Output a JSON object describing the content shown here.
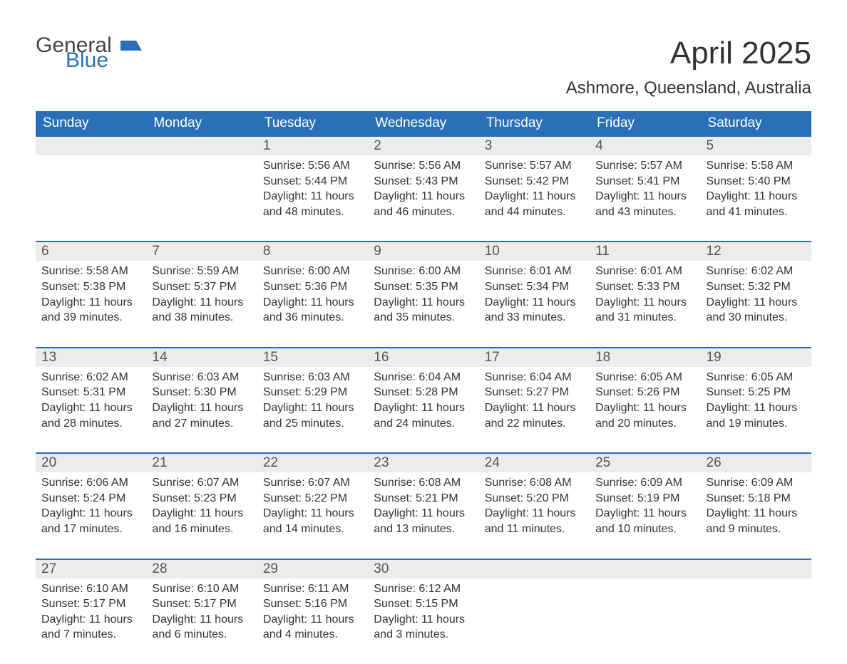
{
  "brand": {
    "name1": "General",
    "name2": "Blue",
    "flag_color": "#2970b8"
  },
  "title": "April 2025",
  "location": "Ashmore, Queensland, Australia",
  "colors": {
    "header_bg": "#2970b8",
    "header_text": "#ffffff",
    "daynum_bg": "#ececec",
    "border": "#2970b8",
    "text": "#333333",
    "bg": "#ffffff"
  },
  "fontsizes": {
    "title": 44,
    "subtitle": 24,
    "header": 19,
    "daynum": 19,
    "body": 16
  },
  "day_headers": [
    "Sunday",
    "Monday",
    "Tuesday",
    "Wednesday",
    "Thursday",
    "Friday",
    "Saturday"
  ],
  "weeks": [
    [
      null,
      null,
      {
        "n": "1",
        "sunrise": "5:56 AM",
        "sunset": "5:44 PM",
        "daylight": "11 hours and 48 minutes."
      },
      {
        "n": "2",
        "sunrise": "5:56 AM",
        "sunset": "5:43 PM",
        "daylight": "11 hours and 46 minutes."
      },
      {
        "n": "3",
        "sunrise": "5:57 AM",
        "sunset": "5:42 PM",
        "daylight": "11 hours and 44 minutes."
      },
      {
        "n": "4",
        "sunrise": "5:57 AM",
        "sunset": "5:41 PM",
        "daylight": "11 hours and 43 minutes."
      },
      {
        "n": "5",
        "sunrise": "5:58 AM",
        "sunset": "5:40 PM",
        "daylight": "11 hours and 41 minutes."
      }
    ],
    [
      {
        "n": "6",
        "sunrise": "5:58 AM",
        "sunset": "5:38 PM",
        "daylight": "11 hours and 39 minutes."
      },
      {
        "n": "7",
        "sunrise": "5:59 AM",
        "sunset": "5:37 PM",
        "daylight": "11 hours and 38 minutes."
      },
      {
        "n": "8",
        "sunrise": "6:00 AM",
        "sunset": "5:36 PM",
        "daylight": "11 hours and 36 minutes."
      },
      {
        "n": "9",
        "sunrise": "6:00 AM",
        "sunset": "5:35 PM",
        "daylight": "11 hours and 35 minutes."
      },
      {
        "n": "10",
        "sunrise": "6:01 AM",
        "sunset": "5:34 PM",
        "daylight": "11 hours and 33 minutes."
      },
      {
        "n": "11",
        "sunrise": "6:01 AM",
        "sunset": "5:33 PM",
        "daylight": "11 hours and 31 minutes."
      },
      {
        "n": "12",
        "sunrise": "6:02 AM",
        "sunset": "5:32 PM",
        "daylight": "11 hours and 30 minutes."
      }
    ],
    [
      {
        "n": "13",
        "sunrise": "6:02 AM",
        "sunset": "5:31 PM",
        "daylight": "11 hours and 28 minutes."
      },
      {
        "n": "14",
        "sunrise": "6:03 AM",
        "sunset": "5:30 PM",
        "daylight": "11 hours and 27 minutes."
      },
      {
        "n": "15",
        "sunrise": "6:03 AM",
        "sunset": "5:29 PM",
        "daylight": "11 hours and 25 minutes."
      },
      {
        "n": "16",
        "sunrise": "6:04 AM",
        "sunset": "5:28 PM",
        "daylight": "11 hours and 24 minutes."
      },
      {
        "n": "17",
        "sunrise": "6:04 AM",
        "sunset": "5:27 PM",
        "daylight": "11 hours and 22 minutes."
      },
      {
        "n": "18",
        "sunrise": "6:05 AM",
        "sunset": "5:26 PM",
        "daylight": "11 hours and 20 minutes."
      },
      {
        "n": "19",
        "sunrise": "6:05 AM",
        "sunset": "5:25 PM",
        "daylight": "11 hours and 19 minutes."
      }
    ],
    [
      {
        "n": "20",
        "sunrise": "6:06 AM",
        "sunset": "5:24 PM",
        "daylight": "11 hours and 17 minutes."
      },
      {
        "n": "21",
        "sunrise": "6:07 AM",
        "sunset": "5:23 PM",
        "daylight": "11 hours and 16 minutes."
      },
      {
        "n": "22",
        "sunrise": "6:07 AM",
        "sunset": "5:22 PM",
        "daylight": "11 hours and 14 minutes."
      },
      {
        "n": "23",
        "sunrise": "6:08 AM",
        "sunset": "5:21 PM",
        "daylight": "11 hours and 13 minutes."
      },
      {
        "n": "24",
        "sunrise": "6:08 AM",
        "sunset": "5:20 PM",
        "daylight": "11 hours and 11 minutes."
      },
      {
        "n": "25",
        "sunrise": "6:09 AM",
        "sunset": "5:19 PM",
        "daylight": "11 hours and 10 minutes."
      },
      {
        "n": "26",
        "sunrise": "6:09 AM",
        "sunset": "5:18 PM",
        "daylight": "11 hours and 9 minutes."
      }
    ],
    [
      {
        "n": "27",
        "sunrise": "6:10 AM",
        "sunset": "5:17 PM",
        "daylight": "11 hours and 7 minutes."
      },
      {
        "n": "28",
        "sunrise": "6:10 AM",
        "sunset": "5:17 PM",
        "daylight": "11 hours and 6 minutes."
      },
      {
        "n": "29",
        "sunrise": "6:11 AM",
        "sunset": "5:16 PM",
        "daylight": "11 hours and 4 minutes."
      },
      {
        "n": "30",
        "sunrise": "6:12 AM",
        "sunset": "5:15 PM",
        "daylight": "11 hours and 3 minutes."
      },
      null,
      null,
      null
    ]
  ],
  "labels": {
    "sunrise": "Sunrise: ",
    "sunset": "Sunset: ",
    "daylight": "Daylight: "
  }
}
